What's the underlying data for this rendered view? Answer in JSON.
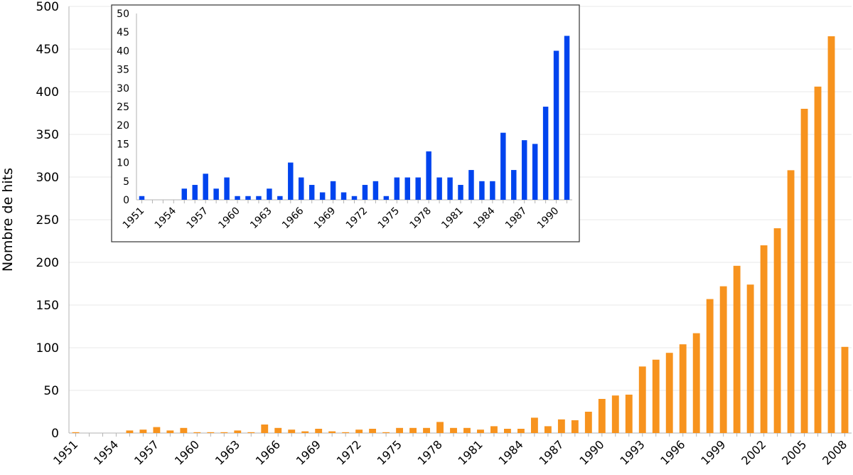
{
  "chart_data": [
    {
      "type": "bar",
      "role": "main",
      "ylabel": "Nombre de hits",
      "xlabel": "",
      "title": "",
      "ylim": [
        0,
        500
      ],
      "yticks": [
        0,
        50,
        100,
        150,
        200,
        250,
        300,
        350,
        400,
        450,
        500
      ],
      "grid": true,
      "color": "#f7931e",
      "categories": [
        1951,
        1952,
        1953,
        1954,
        1955,
        1956,
        1957,
        1958,
        1959,
        1960,
        1961,
        1962,
        1963,
        1964,
        1965,
        1966,
        1967,
        1968,
        1969,
        1970,
        1971,
        1972,
        1973,
        1974,
        1975,
        1976,
        1977,
        1978,
        1979,
        1980,
        1981,
        1982,
        1983,
        1984,
        1985,
        1986,
        1987,
        1988,
        1989,
        1990,
        1991,
        1992,
        1993,
        1994,
        1995,
        1996,
        1997,
        1998,
        1999,
        2000,
        2001,
        2002,
        2003,
        2004,
        2005,
        2006,
        2007,
        2008
      ],
      "tick_labels": [
        "1951",
        "1954",
        "1957",
        "1960",
        "1963",
        "1966",
        "1969",
        "1972",
        "1975",
        "1978",
        "1981",
        "1984",
        "1987",
        "1990",
        "1993",
        "1996",
        "1999",
        "2002",
        "2005",
        "2008"
      ],
      "values": [
        1,
        0,
        0,
        0,
        3,
        4,
        7,
        3,
        6,
        1,
        1,
        1,
        3,
        1,
        10,
        6,
        4,
        2,
        5,
        2,
        1,
        4,
        5,
        1,
        6,
        6,
        6,
        13,
        6,
        6,
        4,
        8,
        5,
        5,
        18,
        8,
        16,
        15,
        25,
        40,
        44,
        45,
        78,
        86,
        94,
        104,
        117,
        157,
        172,
        196,
        174,
        220,
        240,
        308,
        380,
        406,
        465,
        101
      ]
    },
    {
      "type": "bar",
      "role": "inset",
      "ylabel": "",
      "xlabel": "",
      "title": "",
      "ylim": [
        0,
        50
      ],
      "yticks": [
        0,
        5,
        10,
        15,
        20,
        25,
        30,
        35,
        40,
        45,
        50
      ],
      "grid": false,
      "color": "#0044ee",
      "categories": [
        1951,
        1952,
        1953,
        1954,
        1955,
        1956,
        1957,
        1958,
        1959,
        1960,
        1961,
        1962,
        1963,
        1964,
        1965,
        1966,
        1967,
        1968,
        1969,
        1970,
        1971,
        1972,
        1973,
        1974,
        1975,
        1976,
        1977,
        1978,
        1979,
        1980,
        1981,
        1982,
        1983,
        1984,
        1985,
        1986,
        1987,
        1988,
        1989,
        1990,
        1991
      ],
      "tick_labels": [
        "1951",
        "1954",
        "1957",
        "1960",
        "1963",
        "1966",
        "1969",
        "1972",
        "1975",
        "1978",
        "1981",
        "1984",
        "1987",
        "1990"
      ],
      "values": [
        1,
        0,
        0,
        0,
        3,
        4,
        7,
        3,
        6,
        1,
        1,
        1,
        3,
        1,
        10,
        6,
        4,
        2,
        5,
        2,
        1,
        4,
        5,
        1,
        6,
        6,
        6,
        13,
        6,
        6,
        4,
        8,
        5,
        5,
        18,
        8,
        16,
        15,
        25,
        40,
        44
      ]
    }
  ]
}
